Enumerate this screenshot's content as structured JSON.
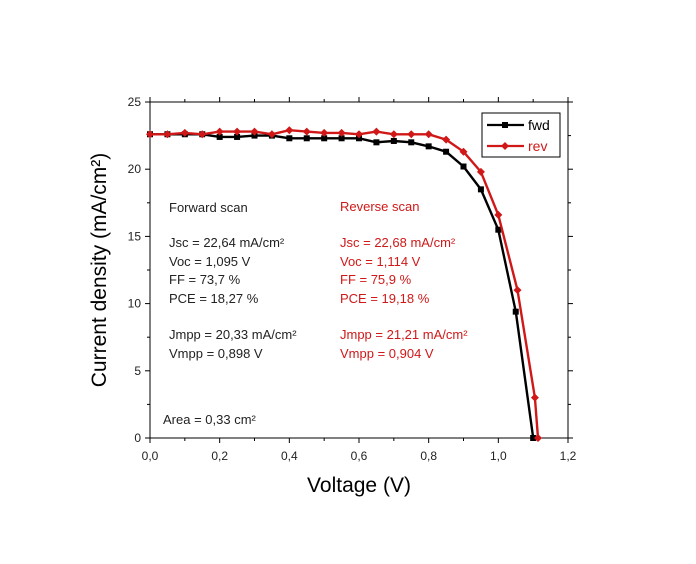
{
  "chart_data": {
    "type": "line",
    "xlabel": "Voltage (V)",
    "ylabel": "Current density (mA/cm²)",
    "xlim": [
      0,
      1.2
    ],
    "ylim": [
      0,
      25
    ],
    "x_ticks": [
      "0,0",
      "0,2",
      "0,4",
      "0,6",
      "0,8",
      "1,0",
      "1,2"
    ],
    "y_ticks": [
      "0",
      "5",
      "10",
      "15",
      "20",
      "25"
    ],
    "legend_position": "top-right",
    "series": [
      {
        "name": "fwd",
        "color": "#000000",
        "marker": "square",
        "x": [
          0,
          0.05,
          0.1,
          0.15,
          0.2,
          0.25,
          0.3,
          0.35,
          0.4,
          0.45,
          0.5,
          0.55,
          0.6,
          0.65,
          0.7,
          0.75,
          0.8,
          0.85,
          0.9,
          0.95,
          1.0,
          1.05,
          1.1
        ],
        "y": [
          22.6,
          22.6,
          22.6,
          22.6,
          22.4,
          22.4,
          22.5,
          22.5,
          22.3,
          22.3,
          22.3,
          22.3,
          22.3,
          22.0,
          22.1,
          22.0,
          21.7,
          21.3,
          20.2,
          18.5,
          15.5,
          9.4,
          0.0
        ]
      },
      {
        "name": "rev",
        "color": "#d01818",
        "marker": "diamond",
        "x": [
          0,
          0.05,
          0.1,
          0.15,
          0.2,
          0.25,
          0.3,
          0.35,
          0.4,
          0.45,
          0.5,
          0.55,
          0.6,
          0.65,
          0.7,
          0.75,
          0.8,
          0.85,
          0.9,
          0.95,
          1.0,
          1.055,
          1.105,
          1.114
        ],
        "y": [
          22.6,
          22.6,
          22.7,
          22.6,
          22.8,
          22.8,
          22.8,
          22.6,
          22.9,
          22.8,
          22.7,
          22.7,
          22.6,
          22.8,
          22.6,
          22.6,
          22.6,
          22.2,
          21.3,
          19.8,
          16.6,
          11.0,
          3.0,
          0.0
        ]
      }
    ]
  },
  "annotations": {
    "forward": {
      "color": "#222222",
      "title": "Forward scan",
      "jsc": "Jsc = 22,64 mA/cm²",
      "voc": "Voc = 1,095 V",
      "ff": "FF = 73,7 %",
      "pce": "PCE = 18,27 %",
      "jmpp": "Jmpp = 20,33 mA/cm²",
      "vmpp": "Vmpp = 0,898 V"
    },
    "reverse": {
      "color": "#d01818",
      "title": "Reverse scan",
      "jsc": "Jsc = 22,68 mA/cm²",
      "voc": "Voc = 1,114 V",
      "ff": "FF = 75,9 %",
      "pce": "PCE = 19,18 %",
      "jmpp": "Jmpp = 21,21 mA/cm²",
      "vmpp": "Vmpp = 0,904 V"
    },
    "area": "Area = 0,33 cm²"
  },
  "legend": {
    "fwd_label": "fwd",
    "rev_label": "rev"
  }
}
